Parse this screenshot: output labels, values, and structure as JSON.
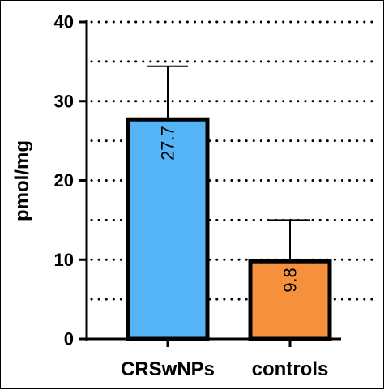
{
  "chart_data": {
    "type": "bar",
    "categories": [
      "CRSwNPs",
      "controls"
    ],
    "values": [
      27.7,
      9.8
    ],
    "value_labels": [
      "27.7",
      "9.8"
    ],
    "error_upper": [
      34.4,
      15.0
    ],
    "ylabel": "pmol/mg",
    "xlabel": "",
    "ylim": [
      0,
      40
    ],
    "yticks": [
      0,
      10,
      20,
      30,
      40
    ],
    "ytick_labels": [
      "0",
      "10",
      "20",
      "30",
      "40"
    ],
    "grid": "horizontal dotted at every 5 units",
    "grid_values": [
      5,
      10,
      15,
      20,
      25,
      30,
      35,
      40
    ],
    "legend": "none",
    "colors": {
      "bars": [
        "#55b4f5",
        "#f5913c"
      ],
      "outline": "#000000",
      "grid": "#000000"
    }
  }
}
